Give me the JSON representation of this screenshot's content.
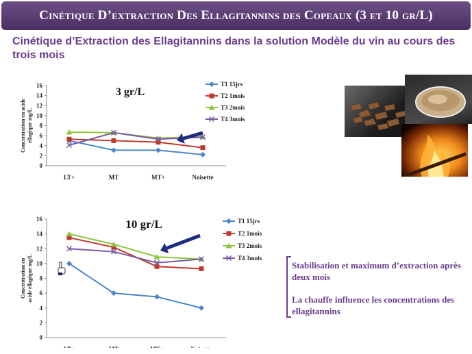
{
  "header": {
    "title": "Cinétique D’extraction Des Ellagitannins des Copeaux (3 et 10 gr/L)"
  },
  "subtitle": "Cinétique d’Extraction des Ellagitannins dans la solution Modèle du vin au cours des trois mois",
  "notes": {
    "line1": "Stabilisation et maximum d’extraction après deux mois",
    "line2": "La chauffe influence les concentrations des ellagitannins"
  },
  "chart_data": [
    {
      "type": "line",
      "title": "3 gr/L",
      "ylabel": "Concentration en acide ellagique mg/L",
      "categories": [
        "LT+",
        "MT",
        "MT+",
        "Noisette"
      ],
      "ylim": [
        0,
        16
      ],
      "yticks": [
        0,
        2,
        4,
        6,
        8,
        10,
        12,
        14,
        16
      ],
      "legend_position": "right",
      "series": [
        {
          "name": "T1 15jrs",
          "color": "#4a86c8",
          "marker": "diamond",
          "values": [
            5.0,
            3.1,
            3.1,
            2.2
          ]
        },
        {
          "name": "T2 1mois",
          "color": "#c0392b",
          "marker": "square",
          "values": [
            5.3,
            5.0,
            4.7,
            3.6
          ]
        },
        {
          "name": "T3 2mois",
          "color": "#8dc63f",
          "marker": "triangle",
          "values": [
            6.7,
            6.6,
            5.5,
            5.8
          ]
        },
        {
          "name": "T4 3mois",
          "color": "#7a5aa6",
          "marker": "x",
          "values": [
            4.1,
            6.6,
            5.3,
            5.7
          ]
        }
      ]
    },
    {
      "type": "line",
      "title": "10 gr/L",
      "ylabel": "Concentration en acide ellagique mg/L",
      "categories": [
        "LT+",
        "MT",
        "MT+",
        "Noisette"
      ],
      "ylim": [
        0,
        16
      ],
      "yticks": [
        0,
        2,
        4,
        6,
        8,
        10,
        12,
        14,
        16
      ],
      "legend_position": "right",
      "series": [
        {
          "name": "T1 15jrs",
          "color": "#4a86c8",
          "marker": "diamond",
          "values": [
            10.0,
            6.0,
            5.5,
            4.0
          ]
        },
        {
          "name": "T2 1mois",
          "color": "#c0392b",
          "marker": "square",
          "values": [
            13.5,
            12.2,
            9.6,
            9.3
          ]
        },
        {
          "name": "T3 2mois",
          "color": "#8dc63f",
          "marker": "triangle",
          "values": [
            14.0,
            12.6,
            10.9,
            10.6
          ]
        },
        {
          "name": "T4 3mois",
          "color": "#7a5aa6",
          "marker": "x",
          "values": [
            12.0,
            11.6,
            10.1,
            10.6
          ]
        }
      ]
    }
  ]
}
